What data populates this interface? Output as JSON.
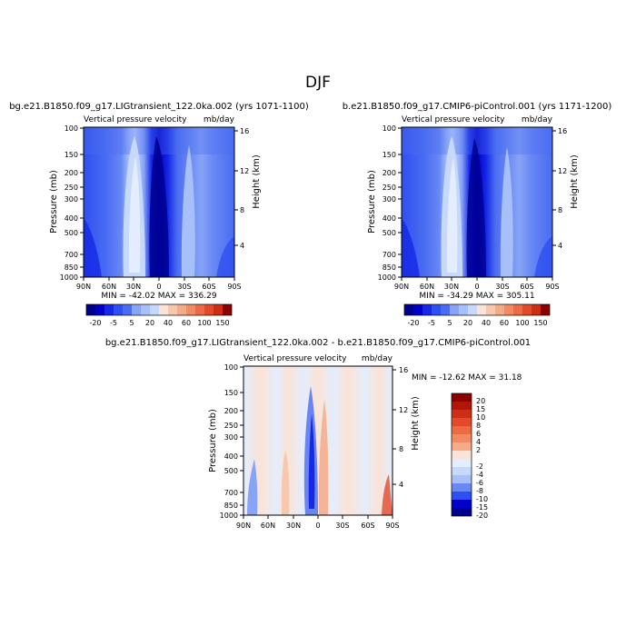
{
  "page_title": "DJF",
  "chart_data": [
    {
      "type": "heatmap",
      "title": "bg.e21.B1850.f09_g17.LIGtransient_122.0ka.002 (yrs 1071-1100)",
      "subtitle_left": "Vertical pressure velocity",
      "subtitle_right": "mb/day",
      "ylabel": "Pressure (mb)",
      "y2label": "Height (km)",
      "xticks": [
        "90N",
        "60N",
        "30N",
        "0",
        "30S",
        "60S",
        "90S"
      ],
      "yticks": [
        "100",
        "150",
        "200",
        "250",
        "300",
        "400",
        "500",
        "700",
        "850",
        "1000"
      ],
      "y2ticks": [
        "16",
        "12",
        "8",
        "4"
      ],
      "stats": "MIN = -42.02   MAX = 336.29",
      "colorbar_labels": [
        "-20",
        "-5",
        "5",
        "20",
        "40",
        "60",
        "100",
        "150"
      ]
    },
    {
      "type": "heatmap",
      "title": "b.e21.B1850.f09_g17.CMIP6-piControl.001 (yrs 1171-1200)",
      "subtitle_left": "Vertical pressure velocity",
      "subtitle_right": "mb/day",
      "ylabel": "Pressure (mb)",
      "y2label": "Height (km)",
      "xticks": [
        "90N",
        "60N",
        "30N",
        "0",
        "30S",
        "60S",
        "90S"
      ],
      "yticks": [
        "100",
        "150",
        "200",
        "250",
        "300",
        "400",
        "500",
        "700",
        "850",
        "1000"
      ],
      "y2ticks": [
        "16",
        "12",
        "8",
        "4"
      ],
      "stats": "MIN = -34.29   MAX = 305.11",
      "colorbar_labels": [
        "-20",
        "-5",
        "5",
        "20",
        "40",
        "60",
        "100",
        "150"
      ]
    },
    {
      "type": "heatmap",
      "title": "bg.e21.B1850.f09_g17.LIGtransient_122.0ka.002 - b.e21.B1850.f09_g17.CMIP6-piControl.001",
      "subtitle_left": "Vertical pressure velocity",
      "subtitle_right": "mb/day",
      "ylabel": "Pressure (mb)",
      "y2label": "Height (km)",
      "xticks": [
        "90N",
        "60N",
        "30N",
        "0",
        "30S",
        "60S",
        "90S"
      ],
      "yticks": [
        "100",
        "150",
        "200",
        "250",
        "300",
        "400",
        "500",
        "700",
        "850",
        "1000"
      ],
      "y2ticks": [
        "16",
        "12",
        "8",
        "4"
      ],
      "stats": "MIN = -12.62   MAX =  31.18",
      "colorbar_labels": [
        "20",
        "15",
        "10",
        "8",
        "6",
        "4",
        "2",
        "-2",
        "-4",
        "-6",
        "-8",
        "-10",
        "-15",
        "-20"
      ]
    }
  ],
  "colors": {
    "blue_ramp": [
      "#00008f",
      "#0000c8",
      "#1428e6",
      "#2e50f0",
      "#4a6cf2",
      "#6888f4",
      "#87a4f6",
      "#a7c0f9",
      "#c6d9fb",
      "#e3edfd"
    ],
    "red_ramp": [
      "#fbe3d6",
      "#f8c8ae",
      "#f5aa88",
      "#f28a64",
      "#ec6a44",
      "#e24a2a",
      "#cf2e16",
      "#b0160a",
      "#8c0000"
    ]
  }
}
